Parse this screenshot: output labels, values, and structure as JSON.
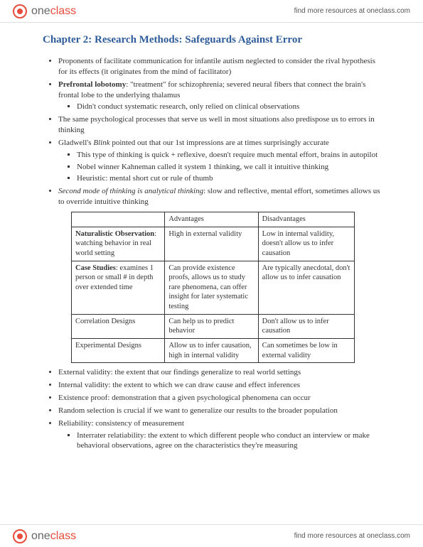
{
  "brand": {
    "one": "one",
    "class": "class"
  },
  "resources_link": "find more resources at oneclass.com",
  "title": "Chapter 2: Research Methods: Safeguards Against Error",
  "bullets": {
    "b1": "Proponents of facilitate communication for infantile autism neglected to consider the rival hypothesis for its effects (it originates from the mind of facilitator)",
    "b2_pre": "Prefrontal lobotomy",
    "b2_post": ": \"treatment\" for schizophrenia; severed neural fibers that connect the brain's frontal lobe to the underlying thalamus",
    "b2_s1": "Didn't conduct systematic research, only relied on clinical observations",
    "b3": "The same psychological processes that serve us well in most situations also predispose us to errors in thinking",
    "b4_pre": "Gladwell's ",
    "b4_em": "Blink",
    "b4_post": " pointed out that our 1st impressions are at times surprisingly accurate",
    "b4_s1": "This type of thinking is quick + reflexive, doesn't require much mental effort, brains in autopilot",
    "b4_s2": "Nobel winner Kahneman called it system 1 thinking, we call it intuitive thinking",
    "b4_s3": "Heuristic: mental short cut or rule of thumb",
    "b5_pre": "Second mode of thinking is ",
    "b5_em": "analytical thinking",
    "b5_post": ": slow and reflective, mental effort, sometimes allows us to override intuitive thinking",
    "b6": "External validity: the extent that our findings generalize to real world settings",
    "b7": "Internal validity: the extent to which we can draw cause and effect inferences",
    "b8": "Existence proof: demonstration that a given psychological phenomena can occur",
    "b9": "Random selection is crucial if we want to generalize our results to the broader population",
    "b10": "Reliability: consistency of measurement",
    "b10_s1": "Interrater relatiability: the extent to which different people who conduct an interview or make behavioral observations, agree on the characteristics they're measuring"
  },
  "table": {
    "head_adv": "Advantages",
    "head_dis": "Disadvantages",
    "r1_label_b": "Naturalistic Observation",
    "r1_label_rest": ": watching behavior in real world setting",
    "r1_adv": "High in external validity",
    "r1_dis": "Low in internal validity, doesn't allow us to infer causation",
    "r2_label_b": "Case Studies",
    "r2_label_rest": ": examines 1 person or small # in depth over extended time",
    "r2_adv": "Can provide existence proofs, allows us to study rare phenomena, can offer insight for later systematic testing",
    "r2_dis": "Are typically anecdotal, don't allow us to infer causation",
    "r3_label": "Correlation Designs",
    "r3_adv": "Can help us to predict behavior",
    "r3_dis": "Don't allow us to infer causation",
    "r4_label": "Experimental Designs",
    "r4_adv": "Allow us to infer causation, high in internal validity",
    "r4_dis": "Can sometimes be low in external validity"
  }
}
